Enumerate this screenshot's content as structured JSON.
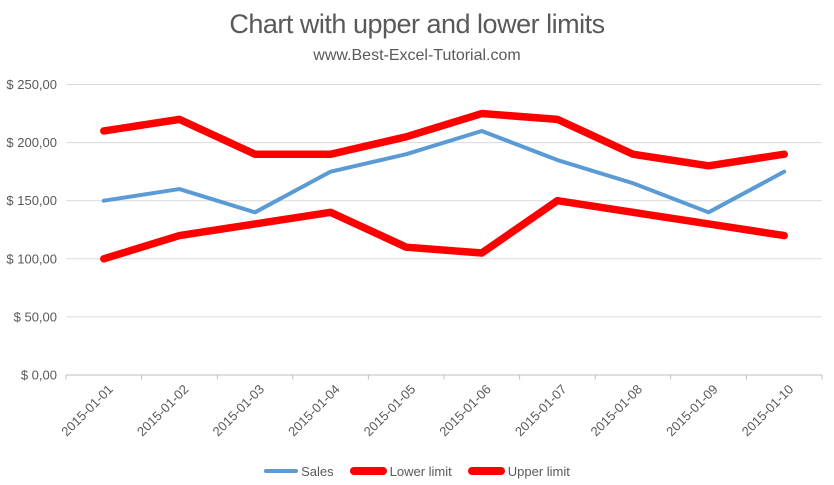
{
  "page": {
    "background": "#FFFFFF"
  },
  "chart_data": {
    "type": "line",
    "title": "Chart with upper and lower limits",
    "subtitle": "www.Best-Excel-Tutorial.com",
    "categories": [
      "2015-01-01",
      "2015-01-02",
      "2015-01-03",
      "2015-01-04",
      "2015-01-05",
      "2015-01-06",
      "2015-01-07",
      "2015-01-08",
      "2015-01-09",
      "2015-01-10"
    ],
    "series": [
      {
        "name": "Sales",
        "values": [
          150,
          160,
          140,
          175,
          190,
          210,
          185,
          165,
          140,
          175
        ],
        "color": "#5B9BD5",
        "stroke_width": 4
      },
      {
        "name": "Lower limit",
        "values": [
          100,
          120,
          130,
          140,
          110,
          105,
          150,
          140,
          130,
          120
        ],
        "color": "#FF0000",
        "stroke_width": 7.5
      },
      {
        "name": "Upper limit",
        "values": [
          210,
          220,
          190,
          190,
          205,
          225,
          220,
          190,
          180,
          190
        ],
        "color": "#FF0000",
        "stroke_width": 7.5
      }
    ],
    "ylim": [
      0,
      250
    ],
    "y_ticks": [
      {
        "value": 0,
        "label": "$ 0,00"
      },
      {
        "value": 50,
        "label": "$ 50,00"
      },
      {
        "value": 100,
        "label": "$ 100,00"
      },
      {
        "value": 150,
        "label": "$ 150,00"
      },
      {
        "value": 200,
        "label": "$ 200,00"
      },
      {
        "value": 250,
        "label": "$ 250,00"
      }
    ],
    "grid": true,
    "legend_position": "bottom",
    "colors": {
      "text": "#595959",
      "gridline": "#D9D9D9",
      "axis_line": "#BFBFBF",
      "sales_line": "#5B9BD5",
      "limit_line": "#FF0000"
    }
  }
}
